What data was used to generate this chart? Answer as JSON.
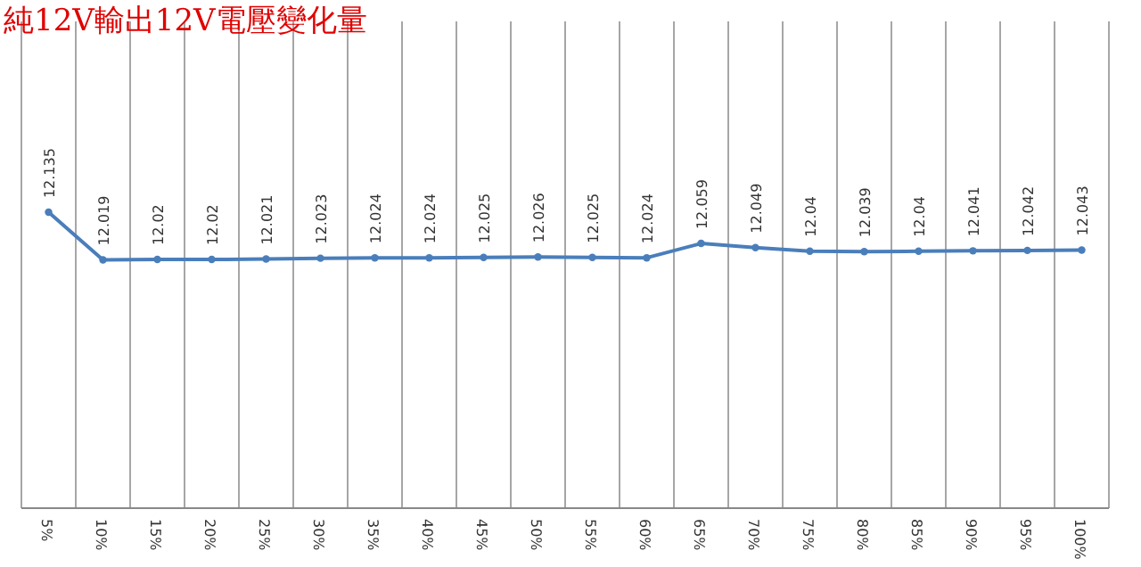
{
  "chart_data": {
    "type": "line",
    "title": "純12V輸出12V電壓變化量",
    "categories": [
      "5%",
      "10%",
      "15%",
      "20%",
      "25%",
      "30%",
      "35%",
      "40%",
      "45%",
      "50%",
      "55%",
      "60%",
      "65%",
      "70%",
      "75%",
      "80%",
      "85%",
      "90%",
      "95%",
      "100%"
    ],
    "series": [
      {
        "color": "#4a7ebb",
        "values": [
          12.135,
          12.019,
          12.02,
          12.02,
          12.021,
          12.023,
          12.024,
          12.024,
          12.025,
          12.026,
          12.025,
          12.024,
          12.059,
          12.049,
          12.04,
          12.039,
          12.04,
          12.041,
          12.042,
          12.043
        ]
      }
    ],
    "ylim": [
      11.414,
      12.6
    ],
    "tick_labels": "x",
    "grid": "x",
    "data_labels": true,
    "marker": "circle",
    "line_style": "solid"
  }
}
